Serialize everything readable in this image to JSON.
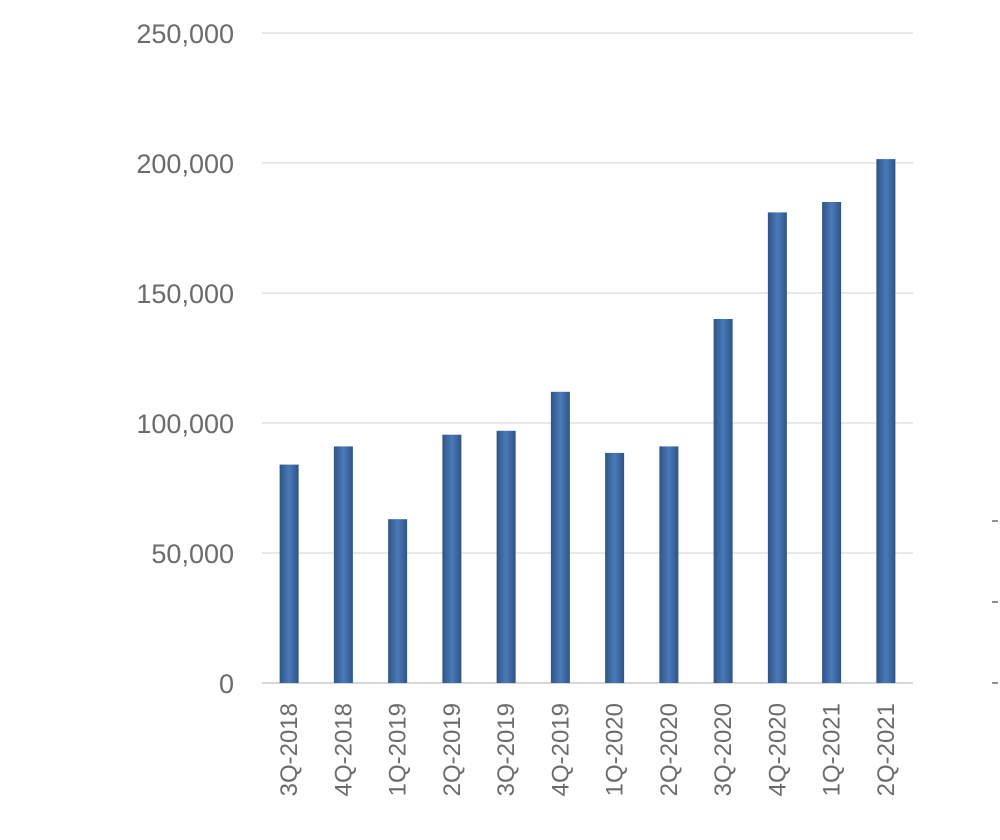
{
  "chart_data": {
    "type": "bar",
    "title": "",
    "xlabel": "",
    "ylabel": "",
    "categories": [
      "3Q-2018",
      "4Q-2018",
      "1Q-2019",
      "2Q-2019",
      "3Q-2019",
      "4Q-2019",
      "1Q-2020",
      "2Q-2020",
      "3Q-2020",
      "4Q-2020",
      "1Q-2021",
      "2Q-2021"
    ],
    "values": [
      84000,
      91000,
      63000,
      95500,
      97000,
      112000,
      88500,
      91000,
      140000,
      181000,
      185000,
      201500
    ],
    "ylim": [
      0,
      250000
    ],
    "y_ticks": [
      0,
      50000,
      100000,
      150000,
      200000,
      250000
    ],
    "y_tick_labels": [
      "0",
      "50,000",
      "100,000",
      "150,000",
      "200,000",
      "250,000"
    ],
    "grid": true,
    "legend": "none",
    "colors": {
      "bar_edge": "#2f5486",
      "bar_center": "#4a7ab8",
      "grid": "#d9d9d9",
      "text": "#6b6b6b"
    }
  }
}
